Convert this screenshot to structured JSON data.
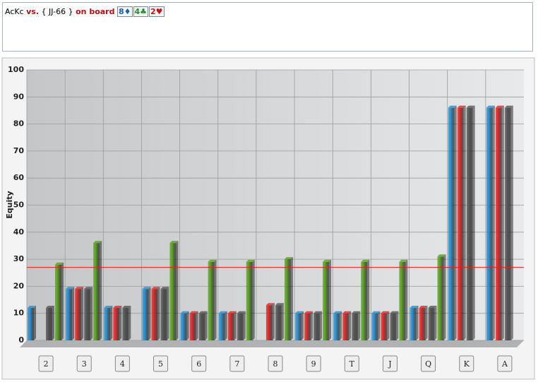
{
  "header": {
    "hand": "AcKc",
    "vs": "vs.",
    "range": "{ JJ-66 }",
    "on_board": "on board",
    "cards": [
      {
        "text": "8♦",
        "color": "#1a5fb4"
      },
      {
        "text": "4♣",
        "color": "#2a8a2a"
      },
      {
        "text": "2♥",
        "color": "#c01818"
      }
    ]
  },
  "chart_data": {
    "type": "bar",
    "y_label": "Equity",
    "categories": [
      "2",
      "3",
      "4",
      "5",
      "6",
      "7",
      "8",
      "9",
      "T",
      "J",
      "Q",
      "K",
      "A"
    ],
    "series": [
      {
        "color": "#2a8fd0",
        "values": [
          12,
          19,
          12,
          19,
          10,
          10,
          null,
          10,
          10,
          10,
          12,
          86,
          86
        ]
      },
      {
        "color": "#e02828",
        "values": [
          null,
          19,
          12,
          19,
          10,
          10,
          13,
          10,
          10,
          10,
          12,
          86,
          86
        ]
      },
      {
        "color": "#555555",
        "values": [
          12,
          19,
          12,
          19,
          10,
          10,
          13,
          10,
          10,
          10,
          12,
          86,
          86
        ]
      },
      {
        "color": "#5aa020",
        "values": [
          28,
          36,
          null,
          36,
          29,
          29,
          30,
          29,
          29,
          29,
          31,
          null,
          null
        ]
      }
    ],
    "reference_line": {
      "value": 27,
      "color": "#e02020"
    },
    "ylim": [
      0,
      100
    ],
    "yticks": [
      0,
      10,
      20,
      30,
      40,
      50,
      60,
      70,
      80,
      90,
      100
    ],
    "grid": true
  }
}
